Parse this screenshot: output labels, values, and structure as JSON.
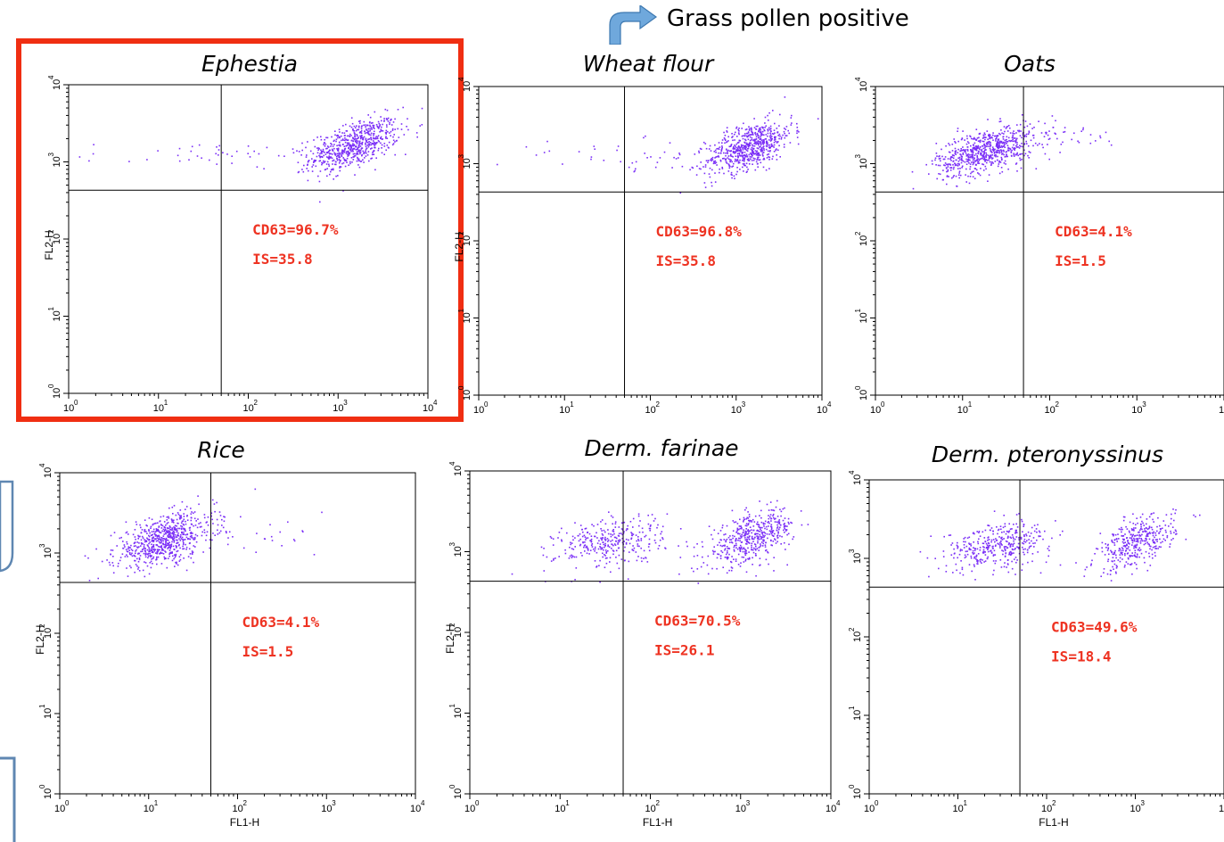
{
  "annotation": {
    "text": "Grass pollen positive"
  },
  "colors": {
    "dots": "#7b2ff7",
    "highlight": "#f02e12",
    "stat_text": "#ee3322",
    "annotation_arrow": "#6fa8dc",
    "left_shapes": "#5f87b2"
  },
  "chart_data": [
    {
      "type": "scatter",
      "title": "Ephestia",
      "xlabel": "",
      "ylabel": "FL2-H",
      "x_scale": "log",
      "y_scale": "log",
      "xlim": [
        1,
        10000
      ],
      "ylim": [
        1,
        10000
      ],
      "gate_x": 50,
      "gate_y": 430,
      "highlighted": true,
      "stats": {
        "cd63": "CD63=96.7%",
        "is": "IS=35.8"
      },
      "clusters": [
        {
          "x": 1500,
          "y": 1700,
          "sx": 0.25,
          "sy": 0.17,
          "rho": 0.55,
          "n": 650
        },
        {
          "x": 60,
          "y": 1250,
          "sx": 0.8,
          "sy": 0.09,
          "rho": 0,
          "n": 55
        }
      ]
    },
    {
      "type": "scatter",
      "title": "Wheat flour",
      "xlabel": "",
      "ylabel": "FL2-H",
      "x_scale": "log",
      "y_scale": "log",
      "xlim": [
        1,
        10000
      ],
      "ylim": [
        1,
        10000
      ],
      "gate_x": 50,
      "gate_y": 430,
      "highlighted": false,
      "stats": {
        "cd63": "CD63=96.8%",
        "is": "IS=35.8"
      },
      "clusters": [
        {
          "x": 1400,
          "y": 1700,
          "sx": 0.25,
          "sy": 0.17,
          "rho": 0.55,
          "n": 650
        },
        {
          "x": 60,
          "y": 1300,
          "sx": 0.8,
          "sy": 0.1,
          "rho": 0,
          "n": 45
        }
      ]
    },
    {
      "type": "scatter",
      "title": "Oats",
      "xlabel": "",
      "ylabel": "",
      "x_scale": "log",
      "y_scale": "log",
      "xlim": [
        1,
        10000
      ],
      "ylim": [
        1,
        10000
      ],
      "gate_x": 50,
      "gate_y": 430,
      "highlighted": false,
      "stats": {
        "cd63": "CD63=4.1%",
        "is": "IS=1.5"
      },
      "clusters": [
        {
          "x": 18,
          "y": 1500,
          "sx": 0.28,
          "sy": 0.16,
          "rho": 0.5,
          "n": 700
        },
        {
          "x": 150,
          "y": 2200,
          "sx": 0.35,
          "sy": 0.12,
          "rho": 0,
          "n": 35
        }
      ]
    },
    {
      "type": "scatter",
      "title": "Rice",
      "xlabel": "FL1-H",
      "ylabel": "FL2-H",
      "x_scale": "log",
      "y_scale": "log",
      "xlim": [
        1,
        10000
      ],
      "ylim": [
        1,
        10000
      ],
      "gate_x": 50,
      "gate_y": 430,
      "highlighted": false,
      "stats": {
        "cd63": "CD63=4.1%",
        "is": "IS=1.5"
      },
      "clusters": [
        {
          "x": 15,
          "y": 1500,
          "sx": 0.28,
          "sy": 0.17,
          "rho": 0.5,
          "n": 700
        },
        {
          "x": 200,
          "y": 1500,
          "sx": 0.35,
          "sy": 0.12,
          "rho": 0,
          "n": 20
        }
      ]
    },
    {
      "type": "scatter",
      "title": "Derm. farinae",
      "xlabel": "FL1-H",
      "ylabel": "FL2-H",
      "x_scale": "log",
      "y_scale": "log",
      "xlim": [
        1,
        10000
      ],
      "ylim": [
        1,
        10000
      ],
      "gate_x": 50,
      "gate_y": 430,
      "highlighted": false,
      "stats": {
        "cd63": "CD63=70.5%",
        "is": "IS=26.1"
      },
      "clusters": [
        {
          "x": 1300,
          "y": 1500,
          "sx": 0.24,
          "sy": 0.17,
          "rho": 0.55,
          "n": 480
        },
        {
          "x": 35,
          "y": 1350,
          "sx": 0.3,
          "sy": 0.16,
          "rho": 0.3,
          "n": 330
        }
      ]
    },
    {
      "type": "scatter",
      "title": "Derm. pteronyssinus",
      "xlabel": "FL1-H",
      "ylabel": "",
      "x_scale": "log",
      "y_scale": "log",
      "xlim": [
        1,
        10000
      ],
      "ylim": [
        1,
        10000
      ],
      "gate_x": 50,
      "gate_y": 430,
      "highlighted": false,
      "stats": {
        "cd63": "CD63=49.6%",
        "is": "IS=18.4"
      },
      "clusters": [
        {
          "x": 1000,
          "y": 1600,
          "sx": 0.22,
          "sy": 0.17,
          "rho": 0.55,
          "n": 380
        },
        {
          "x": 28,
          "y": 1500,
          "sx": 0.3,
          "sy": 0.15,
          "rho": 0.3,
          "n": 380
        }
      ]
    }
  ]
}
